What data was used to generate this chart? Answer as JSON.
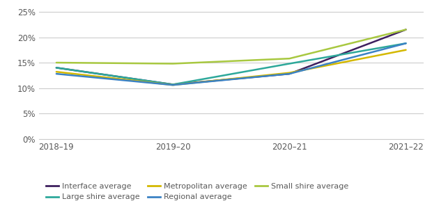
{
  "x_labels": [
    "2018–19",
    "2019–20",
    "2020–21",
    "2021–22"
  ],
  "series": {
    "Interface average": {
      "values": [
        0.14,
        0.107,
        0.128,
        0.215
      ],
      "color": "#3d1f5e",
      "linewidth": 1.8
    },
    "Large shire average": {
      "values": [
        0.14,
        0.107,
        0.148,
        0.188
      ],
      "color": "#2da89a",
      "linewidth": 1.8
    },
    "Metropolitan average": {
      "values": [
        0.132,
        0.106,
        0.13,
        0.175
      ],
      "color": "#d4b800",
      "linewidth": 1.8
    },
    "Regional average": {
      "values": [
        0.128,
        0.106,
        0.128,
        0.188
      ],
      "color": "#3b82c4",
      "linewidth": 1.8
    },
    "Small shire average": {
      "values": [
        0.15,
        0.148,
        0.158,
        0.215
      ],
      "color": "#a8c840",
      "linewidth": 1.8
    }
  },
  "ylim": [
    0,
    0.26
  ],
  "yticks": [
    0,
    0.05,
    0.1,
    0.15,
    0.2,
    0.25
  ],
  "legend_row1": [
    "Interface average",
    "Large shire average",
    "Metropolitan average"
  ],
  "legend_row2": [
    "Regional average",
    "Small shire average"
  ],
  "legend_order": [
    "Interface average",
    "Large shire average",
    "Metropolitan average",
    "Regional average",
    "Small shire average"
  ],
  "background_color": "#ffffff",
  "grid_color": "#cccccc",
  "tick_color": "#595959",
  "legend_fontsize": 8.0,
  "tick_fontsize": 8.5
}
